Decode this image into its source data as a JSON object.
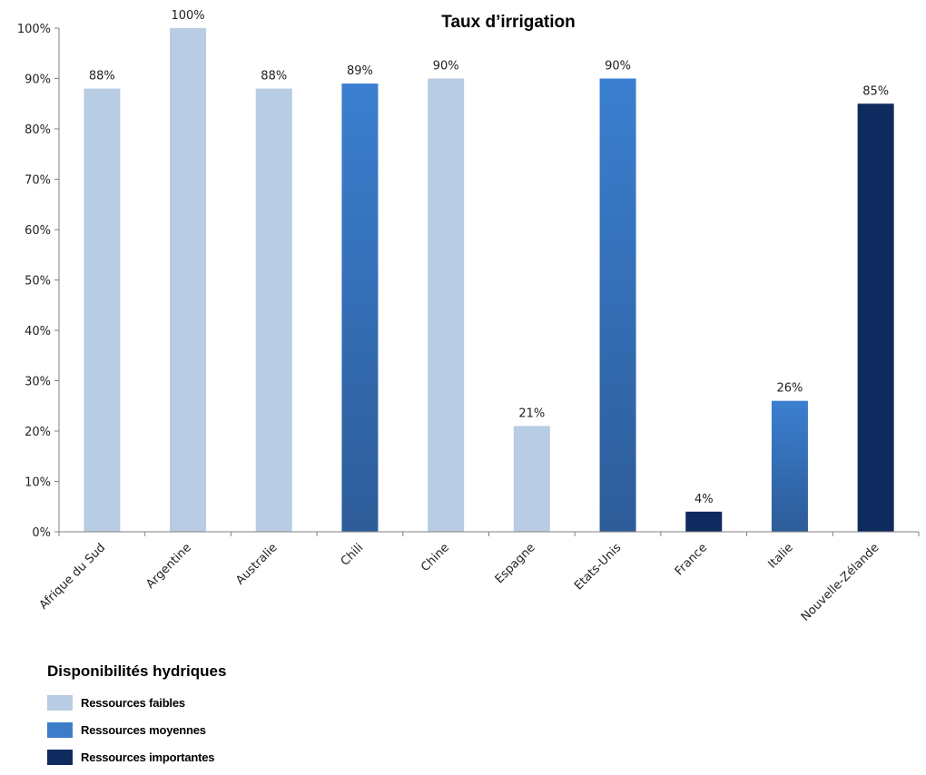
{
  "chart_data": {
    "type": "bar",
    "title": "Taux d’irrigation",
    "xlabel": "",
    "ylabel": "",
    "ylim": [
      0,
      100
    ],
    "y_ticks": [
      "0%",
      "10%",
      "20%",
      "30%",
      "40%",
      "50%",
      "60%",
      "70%",
      "80%",
      "90%",
      "100%"
    ],
    "grid": false,
    "categories": [
      "Afrique du Sud",
      "Argentine",
      "Australie",
      "Chili",
      "Chine",
      "Espagne",
      "Etats-Unis",
      "France",
      "Italie",
      "Nouvelle-Zélande"
    ],
    "values": [
      88,
      100,
      88,
      89,
      90,
      21,
      90,
      4,
      26,
      85
    ],
    "data_labels": [
      "88%",
      "100%",
      "88%",
      "89%",
      "90%",
      "21%",
      "90%",
      "4%",
      "26%",
      "85%"
    ],
    "bar_groups": [
      "faibles",
      "faibles",
      "faibles",
      "moyennes",
      "faibles",
      "faibles",
      "moyennes",
      "importantes",
      "moyennes",
      "importantes"
    ],
    "legend_placement": "bottom-left"
  },
  "legend": {
    "title": "Disponibilités hydriques",
    "items": [
      {
        "key": "faibles",
        "label": "Ressources faibles",
        "color": "#b8cce4"
      },
      {
        "key": "moyennes",
        "label": "Ressources moyennes",
        "color": "#3d7cc9"
      },
      {
        "key": "importantes",
        "label": "Ressources importantes",
        "color": "#0f2a5e"
      }
    ]
  },
  "colors": {
    "faibles": "#b8cce4",
    "moyennes_top": "#3b7fd0",
    "moyennes_bottom": "#2d5c99",
    "importantes": "#0f2a5e",
    "axis": "#808080"
  }
}
